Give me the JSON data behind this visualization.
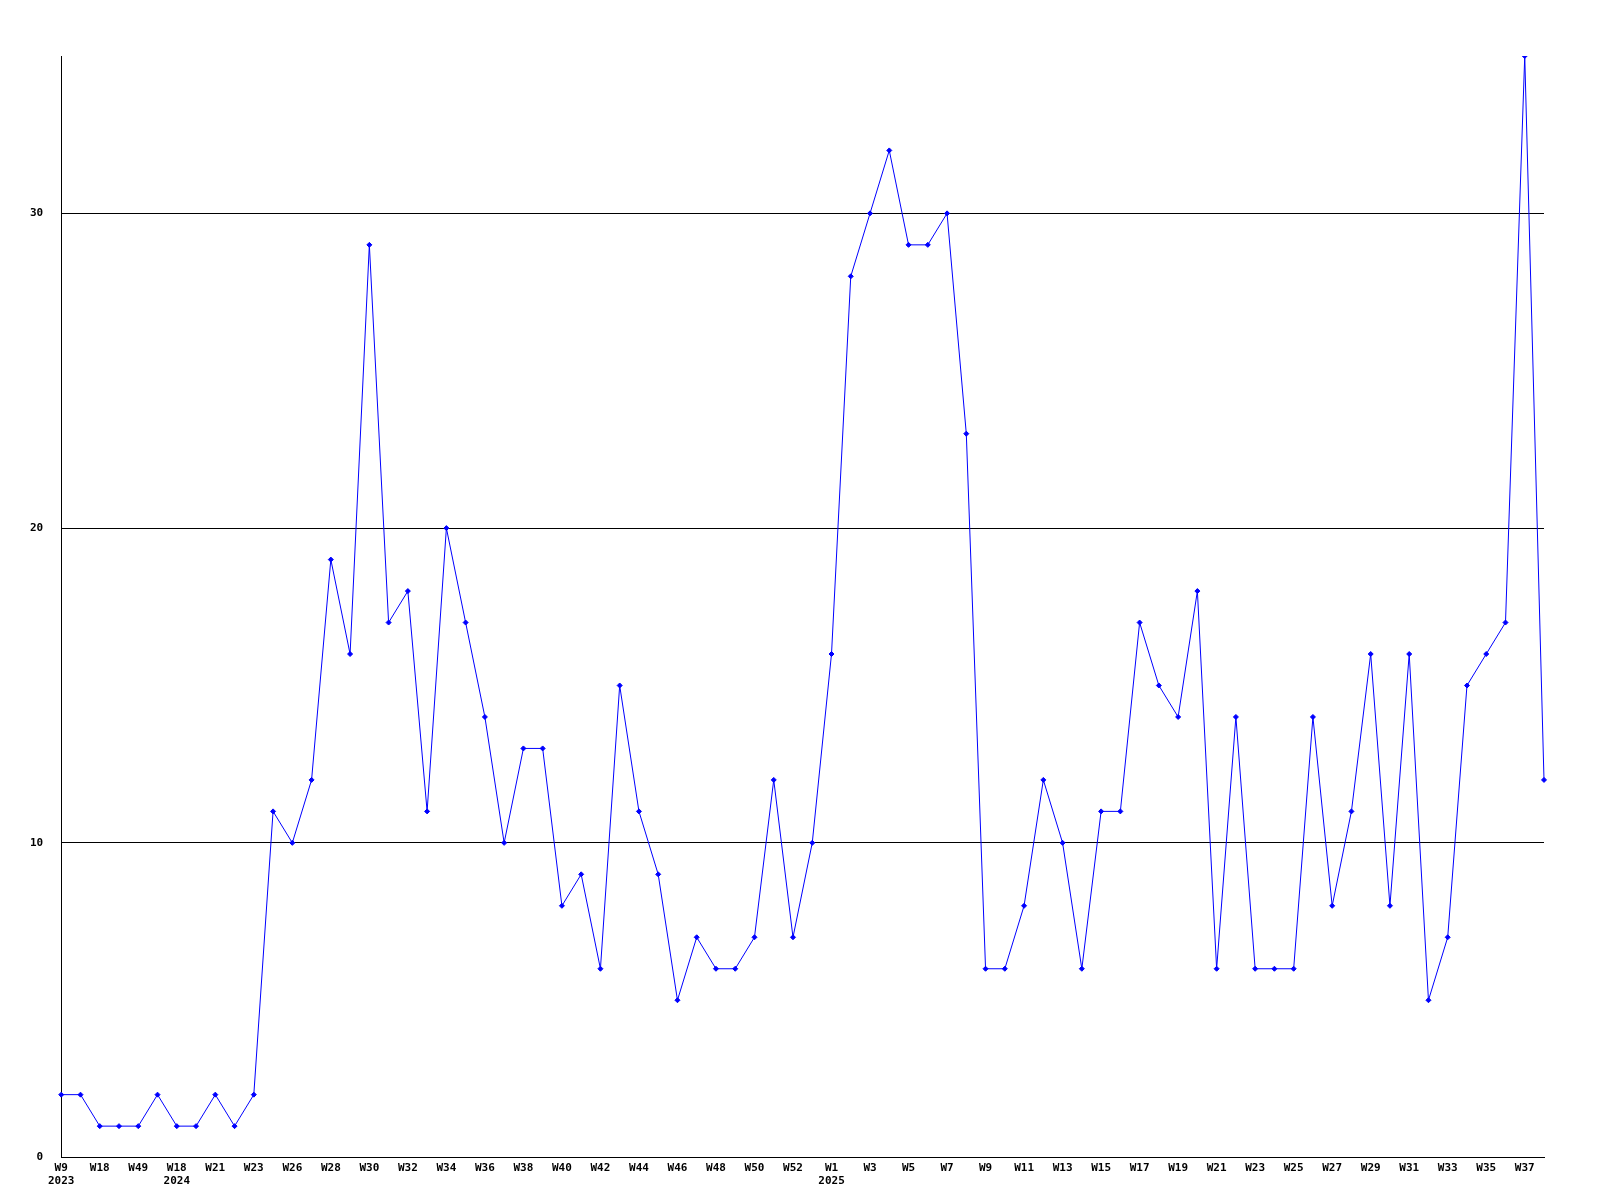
{
  "chart_data": {
    "type": "line",
    "categories": [
      "W9\n2023",
      null,
      "W18",
      null,
      "W49",
      null,
      "W18\n2024",
      null,
      "W21",
      null,
      "W23",
      null,
      "W26",
      null,
      "W28",
      null,
      "W30",
      null,
      "W32",
      null,
      "W34",
      null,
      "W36",
      null,
      "W38",
      null,
      "W40",
      null,
      "W42",
      null,
      "W44",
      null,
      "W46",
      null,
      "W48",
      null,
      "W50",
      null,
      "W52",
      null,
      "W1\n2025",
      null,
      "W3",
      null,
      "W5",
      null,
      "W7",
      null,
      "W9",
      null,
      "W11",
      null,
      "W13",
      null,
      "W15",
      null,
      "W17",
      null,
      "W19",
      null,
      "W21",
      null,
      "W23",
      null,
      "W25",
      null,
      "W27",
      null,
      "W29",
      null,
      "W31",
      null,
      "W33",
      null,
      "W35",
      null,
      "W37",
      null
    ],
    "series": [
      {
        "color": "#0000ff",
        "values": [
          2,
          2,
          1,
          1,
          1,
          2,
          1,
          1,
          2,
          1,
          2,
          11,
          10,
          12,
          19,
          16,
          29,
          17,
          18,
          11,
          20,
          17,
          14,
          10,
          13,
          13,
          8,
          9,
          6,
          15,
          11,
          9,
          5,
          7,
          6,
          6,
          7,
          12,
          7,
          10,
          16,
          28,
          30,
          32,
          29,
          29,
          30,
          23,
          6,
          6,
          8,
          12,
          10,
          6,
          11,
          11,
          17,
          15,
          14,
          18,
          6,
          14,
          6,
          6,
          6,
          14,
          8,
          11,
          16,
          8,
          16,
          5,
          7,
          15,
          16,
          17,
          35,
          12
        ]
      }
    ],
    "ylim": [
      0,
      35
    ],
    "yticks": [
      0,
      10,
      20,
      30
    ],
    "grid": "y",
    "legend": false,
    "marker": "diamond",
    "line_style": "solid"
  }
}
